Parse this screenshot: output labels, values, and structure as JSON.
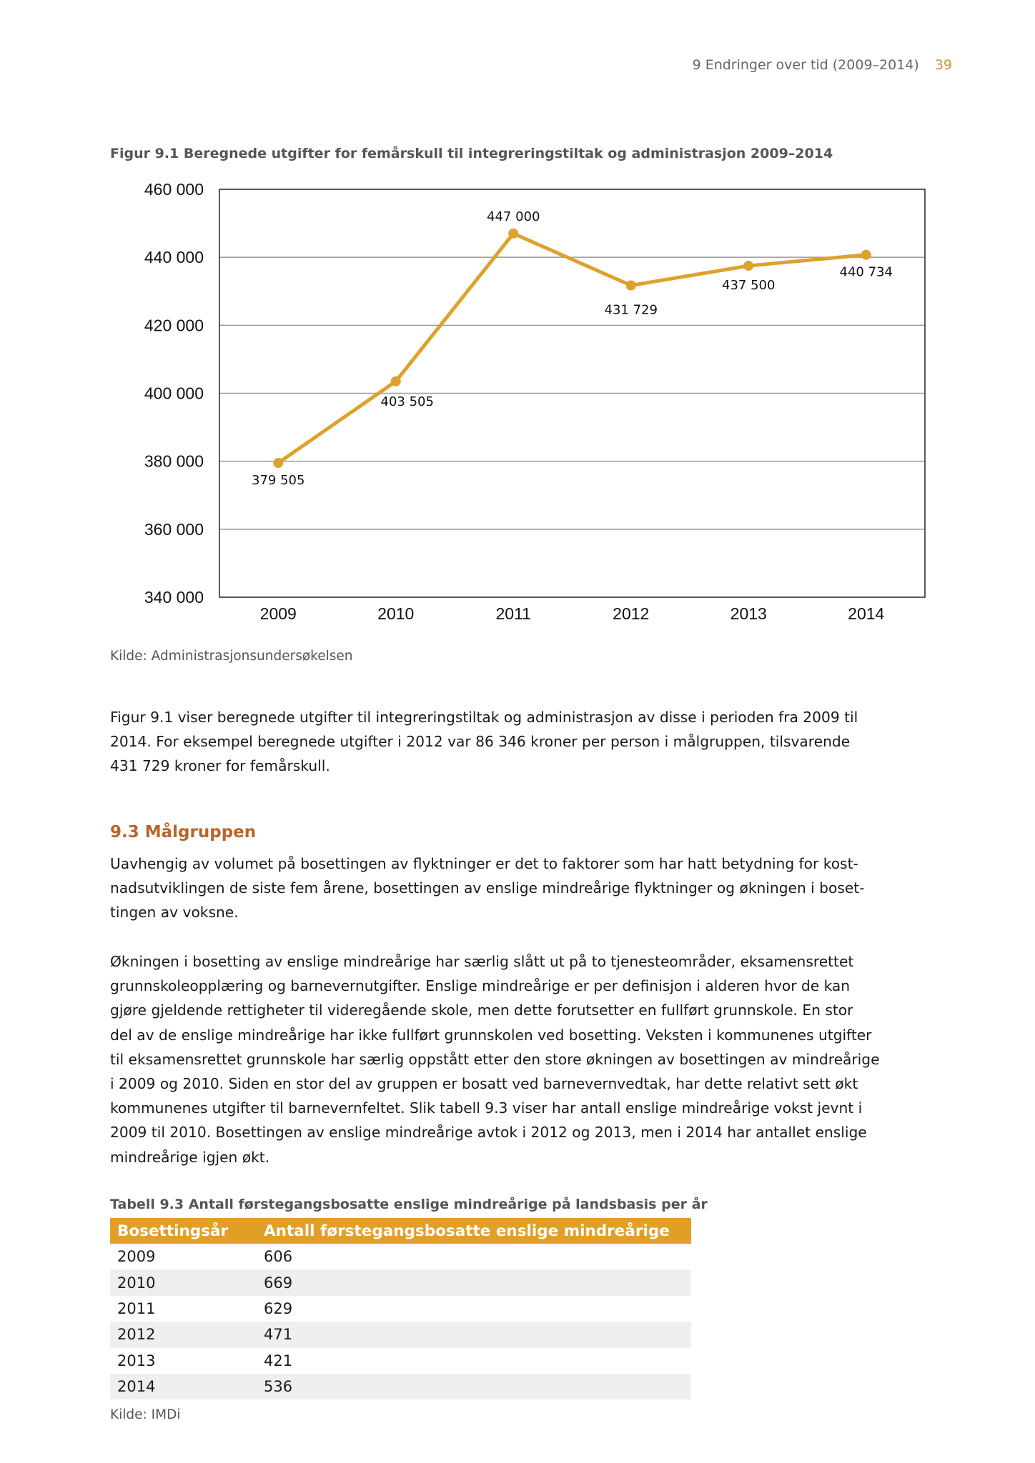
{
  "header": {
    "section": "9 Endringer over tid (2009–2014)",
    "page": "39"
  },
  "figure": {
    "title": "Figur 9.1 Beregnede utgifter for femårskull til integreringstiltak og administrasjon 2009–2014",
    "source": "Kilde: Administrasjonsundersøkelsen"
  },
  "chart_data": {
    "type": "line",
    "title": "Figur 9.1 Beregnede utgifter for femårskull til integreringstiltak og administrasjon 2009–2014",
    "categories": [
      "2009",
      "2010",
      "2011",
      "2012",
      "2013",
      "2014"
    ],
    "values": [
      379505,
      403505,
      447000,
      431729,
      437500,
      440734
    ],
    "data_labels": [
      "379 505",
      "403 505",
      "447 000",
      "431 729",
      "437 500",
      "440 734"
    ],
    "ylim": [
      340000,
      460000
    ],
    "yticks": [
      340000,
      360000,
      380000,
      400000,
      420000,
      440000,
      460000
    ],
    "ytick_labels": [
      "340 000",
      "360 000",
      "380 000",
      "400 000",
      "420 000",
      "440 000",
      "460 000"
    ],
    "grid": true,
    "line_color": "#dea12b"
  },
  "para1": [
    "Figur 9.1 viser beregnede utgifter til integreringstiltak og administrasjon av disse i perioden fra 2009 til",
    "2014. For eksempel beregnede utgifter i 2012 var 86 346 kroner per person i målgruppen, tilsvarende",
    "431 729 kroner for femårskull."
  ],
  "section": {
    "heading": "9.3 Målgruppen"
  },
  "para2": [
    "Uavhengig av volumet på bosettingen av flyktninger er det to faktorer som har hatt betydning for kost-",
    "nadsutviklingen de siste fem årene, bosettingen av enslige mindreårige flyktninger og økningen i boset-",
    "tingen av voksne."
  ],
  "para3": [
    "Økningen i bosetting av enslige mindreårige har særlig slått ut på to tjenesteområder, eksamensrettet",
    "grunnskoleopplæring og barnevernutgifter. Enslige mindreårige er per definisjon i alderen hvor de kan",
    "gjøre gjeldende rettigheter til videregående skole, men dette forutsetter en fullført grunnskole. En stor",
    "del av de enslige mindreårige har ikke fullført grunnskolen ved bosetting. Veksten i kommunenes utgifter",
    "til eksamensrettet grunnskole har særlig oppstått etter den store økningen av bosettingen av mindreårige",
    "i 2009 og 2010. Siden en stor del av gruppen er bosatt ved barnevernvedtak, har dette relativt sett økt",
    "kommunenes utgifter til barnevernfeltet. Slik tabell 9.3 viser har antall enslige mindreårige vokst jevnt i",
    "2009 til 2010. Bosettingen av enslige mindreårige avtok i 2012 og 2013, men i 2014 har antallet enslige",
    "mindreårige igjen økt."
  ],
  "table": {
    "caption": "Tabell 9.3 Antall førstegangsbosatte enslige mindreårige på landsbasis per år",
    "headers": [
      "Bosettingsår",
      "Antall førstegangsbosatte enslige mindreårige"
    ],
    "rows": [
      [
        "2009",
        "606"
      ],
      [
        "2010",
        "669"
      ],
      [
        "2011",
        "629"
      ],
      [
        "2012",
        "471"
      ],
      [
        "2013",
        "421"
      ],
      [
        "2014",
        "536"
      ]
    ],
    "source": "Kilde: IMDi",
    "header_color": "#e29f27"
  }
}
